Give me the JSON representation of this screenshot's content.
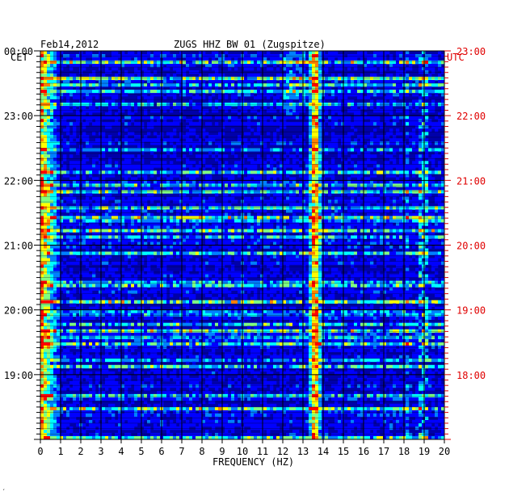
{
  "header": {
    "date": "Feb14,2012",
    "station": "ZUGS HHZ BW 01 (Zugspitze)",
    "left_zone": "CET",
    "right_zone": "UTC"
  },
  "footer": {
    "mark": "′"
  },
  "colors": {
    "background": "#0000a8",
    "grid": "#000000",
    "right_axis": "#e00000",
    "colormap": [
      "#00007f",
      "#0000ff",
      "#0080ff",
      "#00ffff",
      "#80ff80",
      "#ffff00",
      "#ff8000",
      "#ff0000"
    ]
  },
  "chart_data": {
    "type": "heatmap",
    "title": "ZUGS HHZ BW 01 (Zugspitze)",
    "date": "Feb14,2012",
    "xlabel": "FREQUENCY (HZ)",
    "xlim": [
      0,
      20
    ],
    "x_ticks": [
      "0",
      "1",
      "2",
      "3",
      "4",
      "5",
      "6",
      "7",
      "8",
      "9",
      "10",
      "11",
      "12",
      "13",
      "14",
      "15",
      "16",
      "17",
      "18",
      "19",
      "20"
    ],
    "left_axis": {
      "zone": "CET",
      "ticks": [
        "00:00",
        "23:00",
        "22:00",
        "21:00",
        "20:00",
        "19:00"
      ]
    },
    "right_axis": {
      "zone": "UTC",
      "ticks": [
        "23:00",
        "22:00",
        "21:00",
        "20:00",
        "19:00",
        "18:00"
      ]
    },
    "features": [
      {
        "name": "persistent narrow band",
        "frequency_hz": 13.6
      },
      {
        "name": "low-frequency energy",
        "frequency_hz": [
          0,
          1
        ]
      },
      {
        "name": "weak narrow lines",
        "frequency_hz": [
          18.8,
          19.1
        ]
      }
    ],
    "grid": true
  }
}
